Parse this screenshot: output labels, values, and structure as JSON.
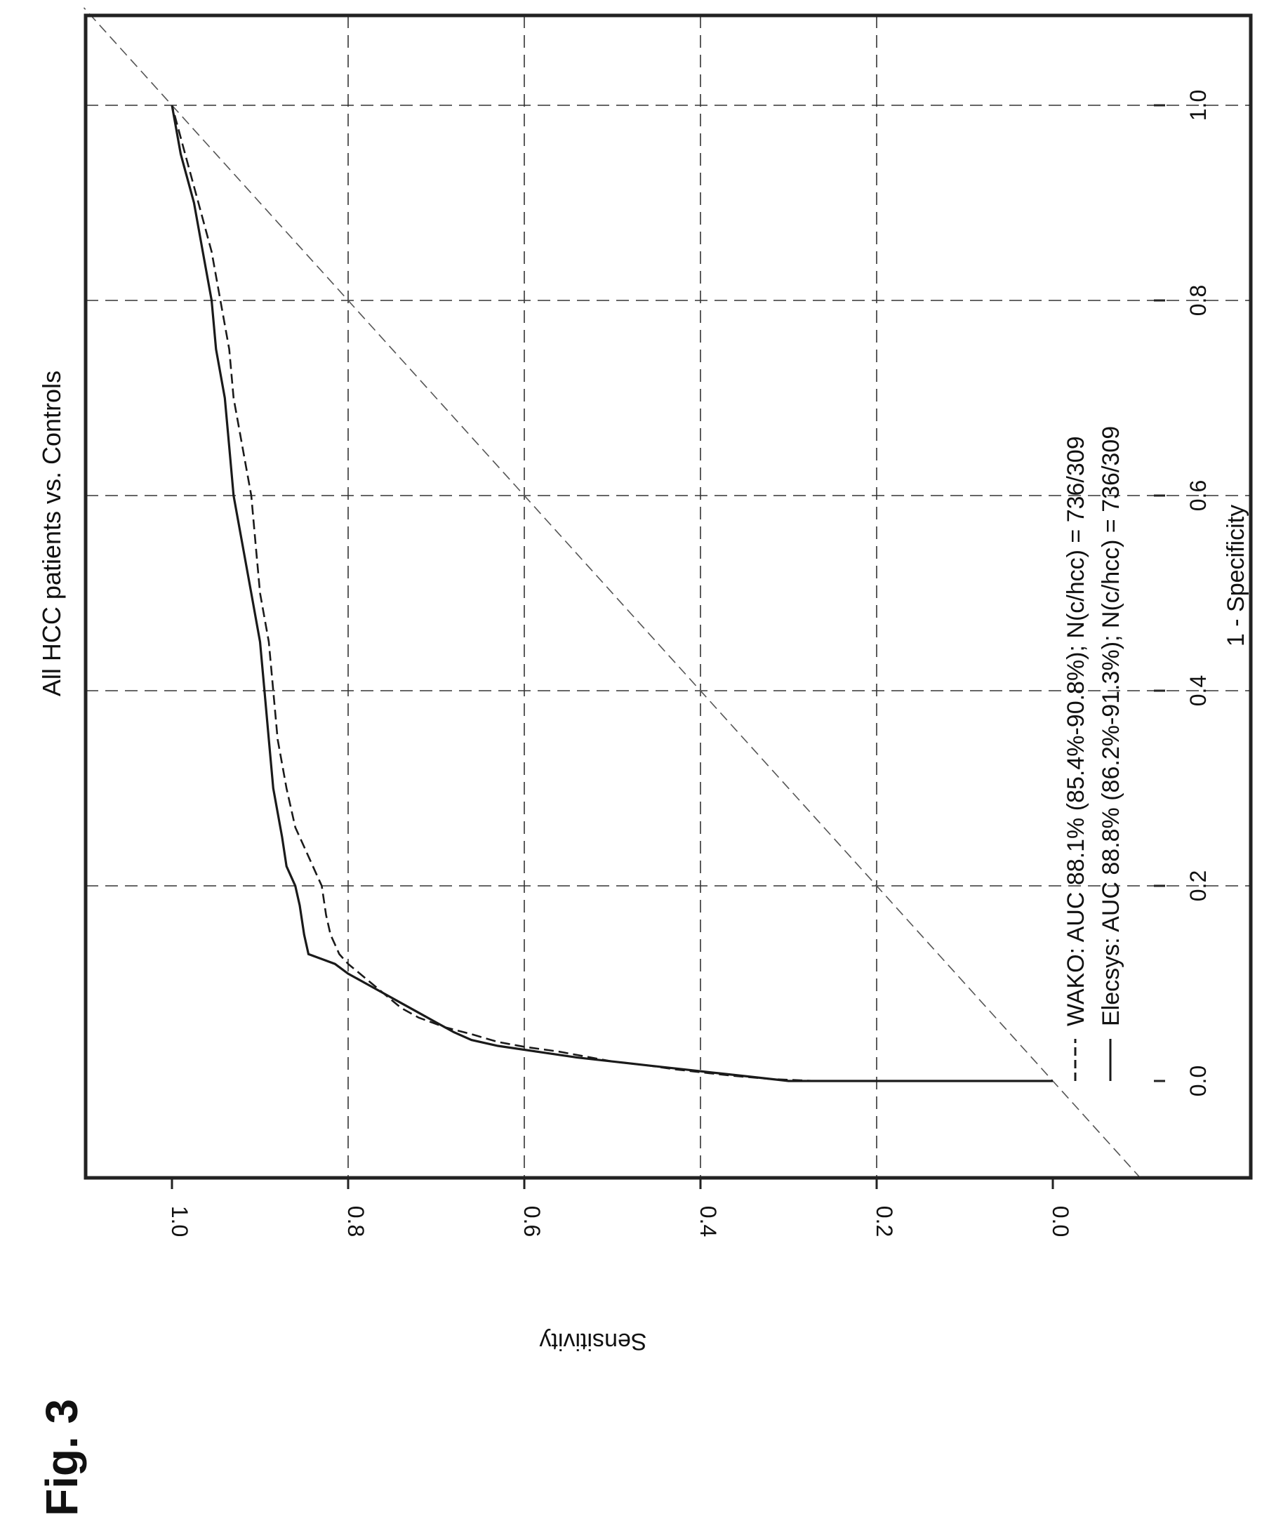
{
  "figure_label": "Fig. 3",
  "chart_data": {
    "type": "line",
    "title": "All HCC patients vs. Controls",
    "xlabel": "1 - Specificity",
    "ylabel": "Sensitivity",
    "xlim": [
      -0.1,
      1.1
    ],
    "ylim": [
      -0.1,
      1.1
    ],
    "xticks": [
      "0.0",
      "0.2",
      "0.4",
      "0.6",
      "0.8",
      "1.0"
    ],
    "yticks": [
      "0.0",
      "0.2",
      "0.4",
      "0.6",
      "0.8",
      "1.0"
    ],
    "grid": true,
    "orientation": "rotated 90° counter-clockwise on page",
    "reference_line": {
      "x": [
        -0.1,
        1.1
      ],
      "y": [
        -0.1,
        1.1
      ]
    },
    "legend_position": "bottom-right",
    "series": [
      {
        "name": "WAKO: AUC 88.1% (85.4%-90.8%); N(c/hcc) = 736/309",
        "style": "dashed",
        "x": [
          0.0,
          0.0,
          0.002,
          0.005,
          0.008,
          0.012,
          0.016,
          0.02,
          0.025,
          0.03,
          0.035,
          0.04,
          0.048,
          0.055,
          0.065,
          0.075,
          0.09,
          0.105,
          0.12,
          0.13,
          0.14,
          0.15,
          0.17,
          0.2,
          0.22,
          0.24,
          0.26,
          0.3,
          0.35,
          0.4,
          0.45,
          0.5,
          0.55,
          0.6,
          0.65,
          0.7,
          0.75,
          0.8,
          0.85,
          0.9,
          0.95,
          1.0
        ],
        "y": [
          0.0,
          0.27,
          0.32,
          0.36,
          0.39,
          0.43,
          0.46,
          0.5,
          0.53,
          0.56,
          0.6,
          0.63,
          0.66,
          0.69,
          0.72,
          0.74,
          0.76,
          0.78,
          0.8,
          0.81,
          0.815,
          0.82,
          0.825,
          0.83,
          0.84,
          0.85,
          0.86,
          0.87,
          0.88,
          0.885,
          0.89,
          0.9,
          0.905,
          0.91,
          0.92,
          0.93,
          0.935,
          0.945,
          0.955,
          0.97,
          0.985,
          1.0
        ]
      },
      {
        "name": "Elecsys: AUC 88.8% (86.2%-91.3%); N(c/hcc) = 736/309",
        "style": "solid",
        "x": [
          0.0,
          0.0,
          0.004,
          0.008,
          0.012,
          0.016,
          0.02,
          0.024,
          0.028,
          0.032,
          0.036,
          0.042,
          0.05,
          0.06,
          0.07,
          0.08,
          0.09,
          0.1,
          0.11,
          0.12,
          0.125,
          0.13,
          0.15,
          0.18,
          0.2,
          0.22,
          0.25,
          0.3,
          0.35,
          0.4,
          0.45,
          0.5,
          0.55,
          0.6,
          0.65,
          0.7,
          0.75,
          0.8,
          0.85,
          0.9,
          0.95,
          1.0
        ],
        "y": [
          0.0,
          0.3,
          0.34,
          0.38,
          0.42,
          0.46,
          0.5,
          0.54,
          0.57,
          0.6,
          0.63,
          0.66,
          0.68,
          0.7,
          0.72,
          0.74,
          0.76,
          0.78,
          0.8,
          0.815,
          0.83,
          0.845,
          0.85,
          0.855,
          0.86,
          0.87,
          0.875,
          0.885,
          0.89,
          0.895,
          0.9,
          0.91,
          0.92,
          0.93,
          0.935,
          0.94,
          0.95,
          0.955,
          0.965,
          0.975,
          0.99,
          1.0
        ]
      }
    ]
  }
}
